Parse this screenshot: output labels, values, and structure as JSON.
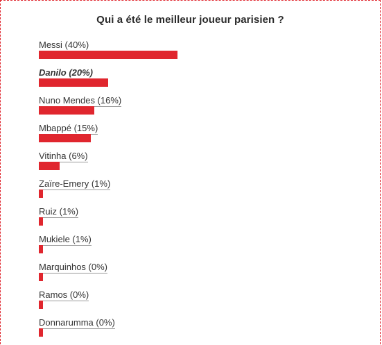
{
  "poll": {
    "title": "Qui a été le meilleur joueur parisien ?",
    "bar_color": "#e0262e",
    "options": [
      {
        "label": "Messi (40%)",
        "percent": 40,
        "selected": false
      },
      {
        "label": "Danilo (20%)",
        "percent": 20,
        "selected": true
      },
      {
        "label": "Nuno Mendes (16%)",
        "percent": 16,
        "selected": false
      },
      {
        "label": "Mbappé (15%)",
        "percent": 15,
        "selected": false
      },
      {
        "label": "Vitinha (6%)",
        "percent": 6,
        "selected": false
      },
      {
        "label": "Zaïre-Emery (1%)",
        "percent": 1,
        "selected": false
      },
      {
        "label": "Ruiz (1%)",
        "percent": 1,
        "selected": false
      },
      {
        "label": "Mukiele (1%)",
        "percent": 1,
        "selected": false
      },
      {
        "label": "Marquinhos (0%)",
        "percent": 0,
        "selected": false
      },
      {
        "label": "Ramos (0%)",
        "percent": 0,
        "selected": false
      },
      {
        "label": "Donnarumma (0%)",
        "percent": 0,
        "selected": false
      }
    ]
  }
}
